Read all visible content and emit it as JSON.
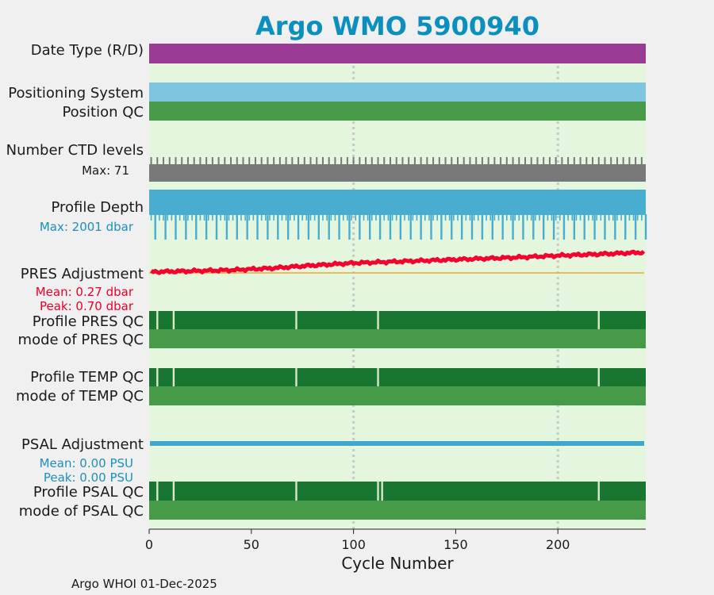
{
  "title": "Argo WMO 5900940",
  "footer": "Argo WHOI 01-Dec-2025",
  "colors": {
    "title": "#0a8fbf",
    "background": "#e4f7de",
    "date_type": "#9a3c96",
    "positioning": "#7ec6df",
    "qc_good": "#479a47",
    "qc_dark": "#187630",
    "ctd": "#787878",
    "depth": "#49adcf",
    "pres_adj": "#f2042f",
    "pres_ref": "#f2a72f",
    "psal_adj": "#3fa8cc",
    "psal_text": "#1a90bf",
    "pres_text": "#e8002a",
    "gridline": "#c8c8c8"
  },
  "chart_data": {
    "type": "timeline",
    "xlabel": "Cycle Number",
    "xlim": [
      0,
      243
    ],
    "xticks": [
      0,
      50,
      100,
      150,
      200
    ],
    "gridlines_x": [
      100,
      200
    ],
    "rows": {
      "date_type": {
        "label": "Date Type (R/D)",
        "value": "R"
      },
      "positioning": {
        "label": "Positioning System"
      },
      "position_qc": {
        "label": "Position QC",
        "value": 1
      },
      "ctd_levels": {
        "label": "Number CTD levels",
        "max_text": "Max: 71",
        "max": 71
      },
      "profile_depth": {
        "label": "Profile Depth",
        "max_text": "Max: 2001 dbar",
        "max": 2001
      },
      "pres_adjustment": {
        "label": "PRES Adjustment",
        "mean_text": "Mean: 0.27 dbar",
        "peak_text": "Peak: 0.70 dbar",
        "mean": 0.27,
        "peak": 0.7,
        "trend": [
          [
            0,
            0.08
          ],
          [
            20,
            0.1
          ],
          [
            40,
            0.12
          ],
          [
            60,
            0.16
          ],
          [
            80,
            0.22
          ],
          [
            100,
            0.27
          ],
          [
            120,
            0.3
          ],
          [
            140,
            0.33
          ],
          [
            160,
            0.36
          ],
          [
            180,
            0.39
          ],
          [
            200,
            0.43
          ],
          [
            220,
            0.46
          ],
          [
            243,
            0.5
          ]
        ]
      },
      "profile_pres_qc": {
        "label": "Profile PRES QC",
        "gap_cycles": [
          4,
          12,
          72,
          112,
          220
        ]
      },
      "mode_pres_qc": {
        "label": "mode of PRES QC"
      },
      "profile_temp_qc": {
        "label": "Profile TEMP QC",
        "gap_cycles": [
          4,
          12,
          72,
          112,
          220
        ]
      },
      "mode_temp_qc": {
        "label": "mode of TEMP QC"
      },
      "psal_adjustment": {
        "label": "PSAL Adjustment",
        "mean_text": "Mean: 0.00 PSU",
        "peak_text": "Peak: 0.00 PSU",
        "mean": 0.0,
        "peak": 0.0
      },
      "profile_psal_qc": {
        "label": "Profile PSAL QC",
        "gap_cycles": [
          4,
          12,
          72,
          112,
          114,
          220
        ]
      },
      "mode_psal_qc": {
        "label": "mode of PSAL QC"
      }
    }
  }
}
